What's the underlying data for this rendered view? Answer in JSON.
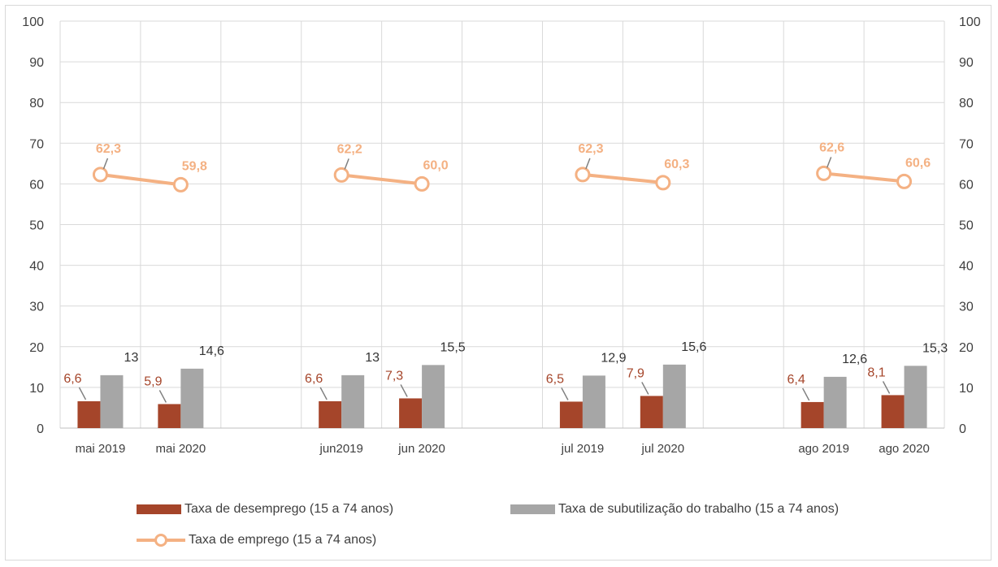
{
  "chart_data": {
    "type": "bar",
    "categories": [
      "mai 2019",
      "mai 2020",
      "",
      "jun2019",
      "jun 2020",
      "",
      "jul 2019",
      "jul 2020",
      "",
      "ago 2019",
      "ago 2020"
    ],
    "series": [
      {
        "name": "Taxa de desemprego (15 a 74 anos)",
        "kind": "bar",
        "color": "#a5452a",
        "values": [
          6.6,
          5.9,
          null,
          6.6,
          7.3,
          null,
          6.5,
          7.9,
          null,
          6.4,
          8.1
        ],
        "labels": [
          "6,6",
          "5,9",
          "",
          "6,6",
          "7,3",
          "",
          "6,5",
          "7,9",
          "",
          "6,4",
          "8,1"
        ]
      },
      {
        "name": "Taxa de subutilização do trabalho (15 a 74 anos)",
        "kind": "bar",
        "color": "#a6a6a6",
        "values": [
          13,
          14.6,
          null,
          13,
          15.5,
          null,
          12.9,
          15.6,
          null,
          12.6,
          15.3
        ],
        "labels": [
          "13",
          "14,6",
          "",
          "13",
          "15,5",
          "",
          "12,9",
          "15,6",
          "",
          "12,6",
          "15,3"
        ]
      },
      {
        "name": "Taxa de emprego (15 a 74 anos)",
        "kind": "line",
        "color": "#f4b183",
        "values": [
          62.3,
          59.8,
          null,
          62.2,
          60.0,
          null,
          62.3,
          60.3,
          null,
          62.6,
          60.6
        ],
        "labels": [
          "62,3",
          "59,8",
          "",
          "62,2",
          "60,0",
          "",
          "62,3",
          "60,3",
          "",
          "62,6",
          "60,6"
        ]
      }
    ],
    "yticks": [
      "0",
      "10",
      "20",
      "30",
      "40",
      "50",
      "60",
      "70",
      "80",
      "90",
      "100"
    ],
    "ylim": [
      0,
      100
    ],
    "y2lim": [
      0,
      100
    ],
    "grid": true,
    "legend_position": "bottom"
  }
}
